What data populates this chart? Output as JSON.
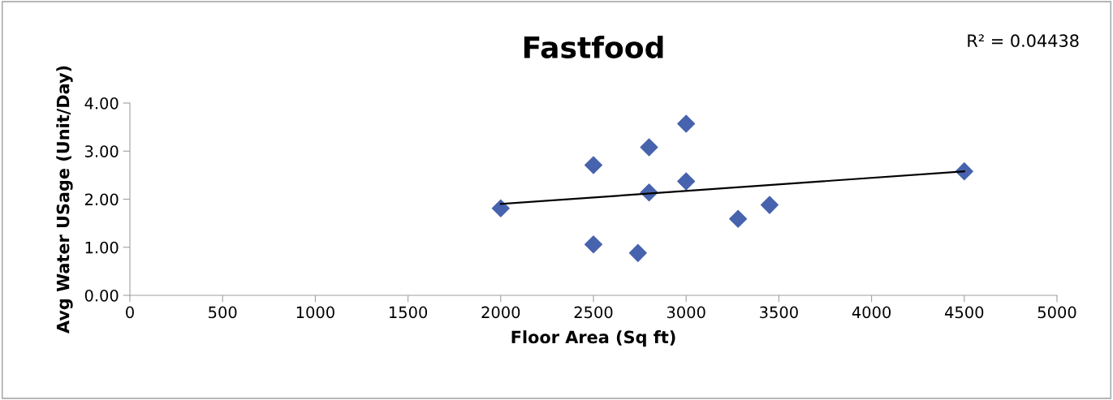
{
  "chart_data": {
    "type": "scatter",
    "title": "Fastfood",
    "xlabel": "Floor Area (Sq ft)",
    "ylabel": "Avg Water USage (Unit/Day)",
    "annotations": [
      "R² = 0.04438"
    ],
    "series": [
      {
        "color": "#4763ae",
        "marker": "diamond",
        "x": [
          2000,
          2500,
          2500,
          2800,
          2800,
          2740,
          3000,
          3000,
          3280,
          3450,
          4500
        ],
        "values": [
          1.81,
          2.71,
          1.06,
          3.08,
          2.14,
          0.88,
          3.57,
          2.37,
          1.59,
          1.88,
          2.58
        ]
      },
      {
        "type": "line",
        "color": "#000000",
        "x": [
          2000,
          4500
        ],
        "values": [
          1.9,
          2.58
        ]
      }
    ],
    "xlim": [
      0,
      5000
    ],
    "xticks": [
      0,
      500,
      1000,
      1500,
      2000,
      2500,
      3000,
      3500,
      4000,
      4500,
      5000
    ],
    "ylim": [
      0,
      4
    ],
    "yticks": [
      {
        "value": 0,
        "label": "0.00"
      },
      {
        "value": 1,
        "label": "1.00"
      },
      {
        "value": 2,
        "label": "2.00"
      },
      {
        "value": 3,
        "label": "3.00"
      },
      {
        "value": 4,
        "label": "4.00"
      }
    ],
    "grid": false,
    "legend": false
  }
}
